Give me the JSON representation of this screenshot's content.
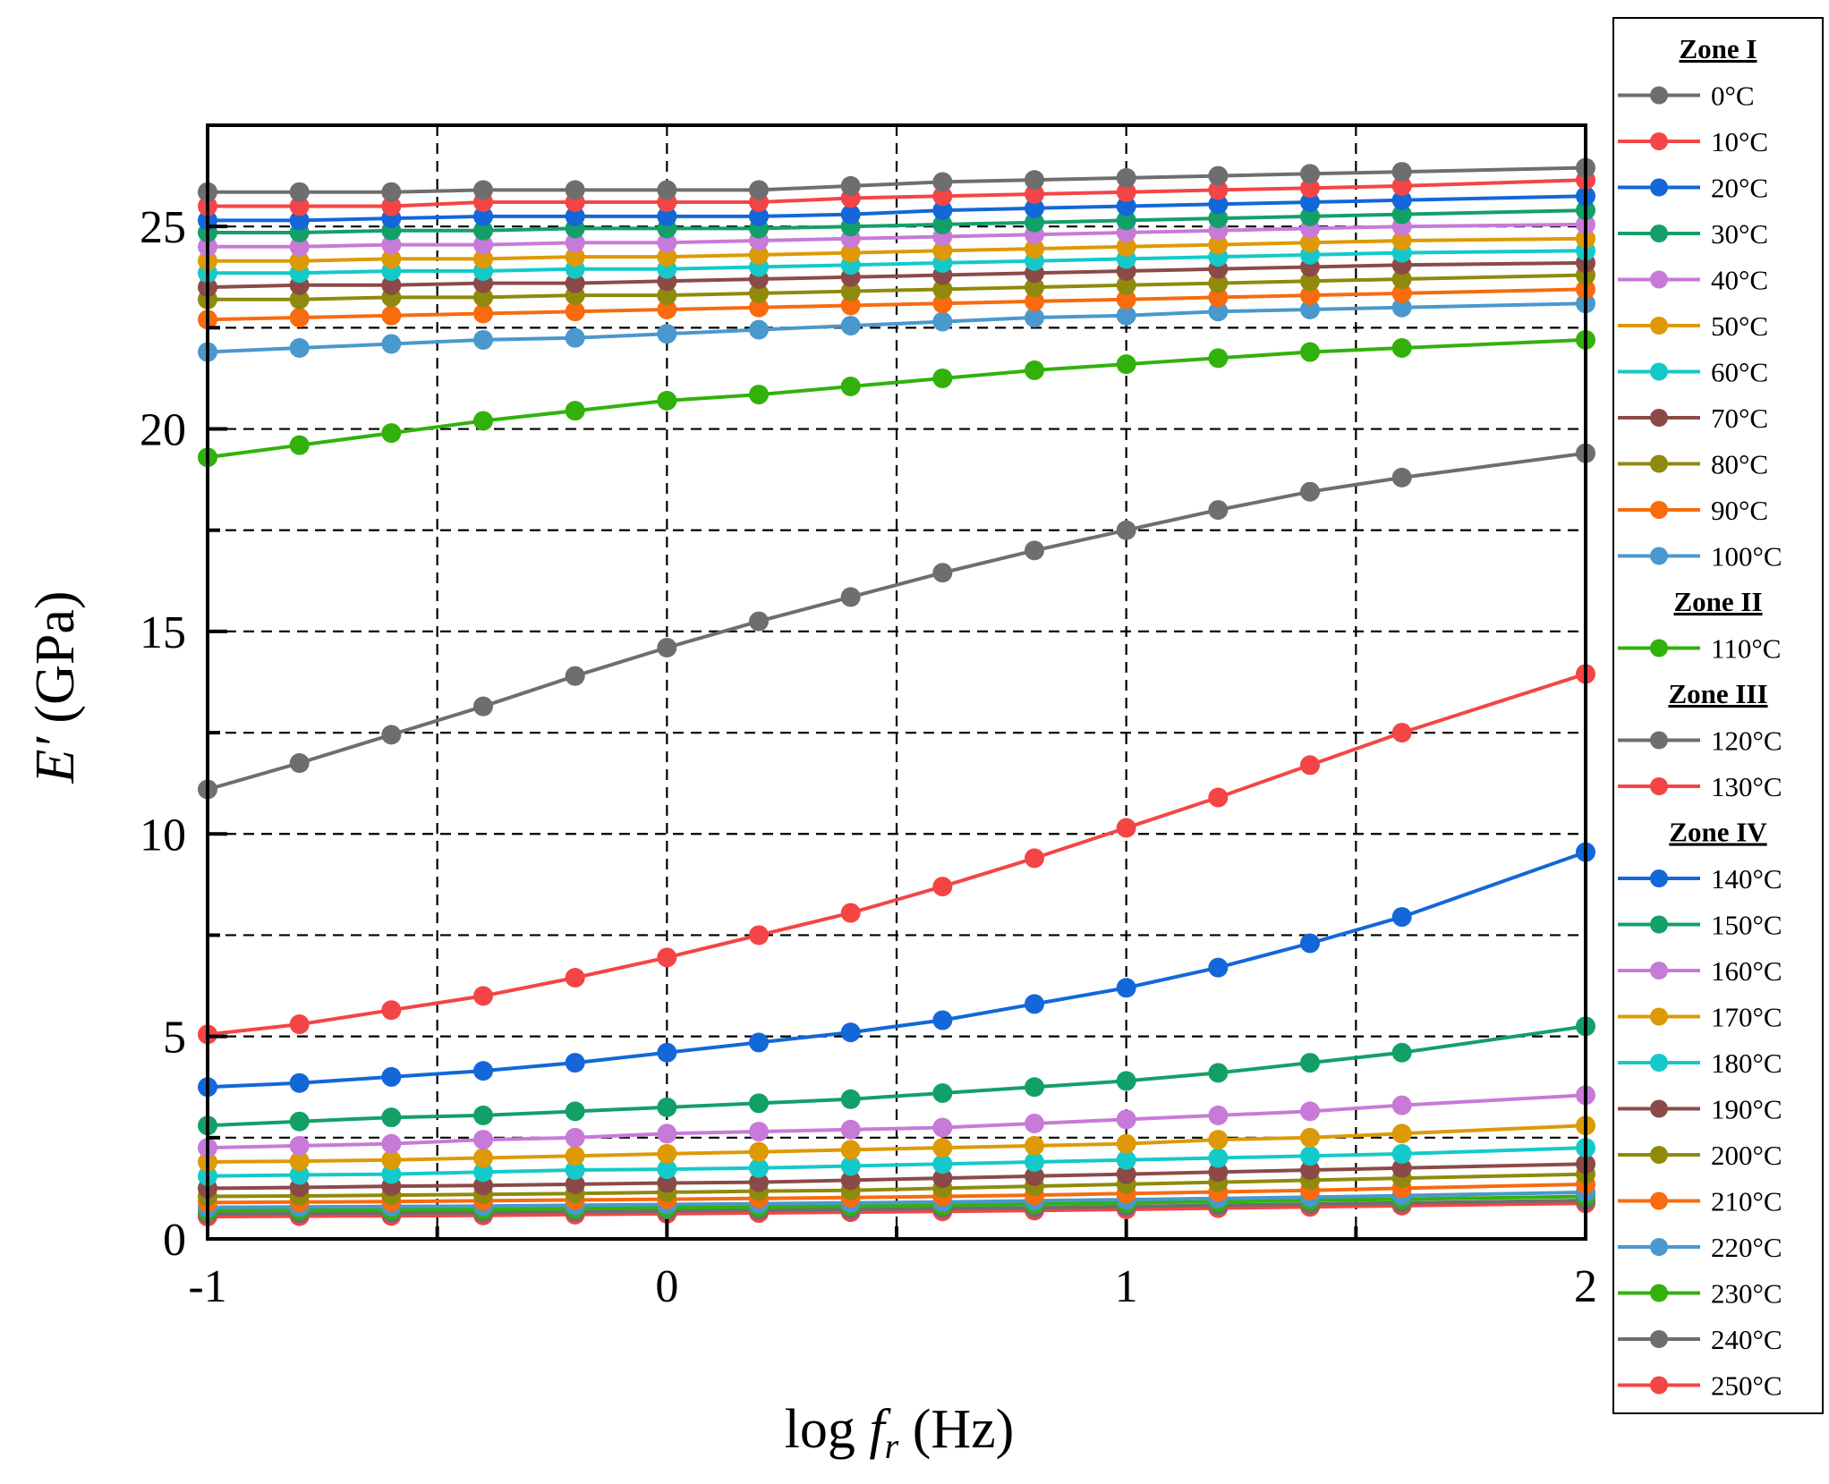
{
  "chart_data": {
    "type": "line",
    "xlabel_prefix": "log ",
    "xlabel_var": "f",
    "xlabel_sub": "r",
    "xlabel_unit": " (Hz)",
    "ylabel_var": "E′",
    "ylabel_unit": " (GPa)",
    "xlim": [
      -1,
      2
    ],
    "ylim": [
      0,
      27.5
    ],
    "xticks": [
      -1,
      0,
      1,
      2
    ],
    "xtick_labels": [
      "-1",
      "0",
      "1",
      "2"
    ],
    "yticks": [
      0,
      5,
      10,
      15,
      20,
      25
    ],
    "ytick_labels": [
      "0",
      "5",
      "10",
      "15",
      "20",
      "25"
    ],
    "grid": "dashed at 0.5 x-steps and 2.5 y-steps",
    "x": [
      -1,
      -0.8,
      -0.6,
      -0.4,
      -0.2,
      0,
      0.2,
      0.4,
      0.6,
      0.8,
      1,
      1.2,
      1.4,
      1.6,
      2
    ],
    "legend": [
      {
        "heading": "Zone I",
        "entries": [
          "0°C",
          "10°C",
          "20°C",
          "30°C",
          "40°C",
          "50°C",
          "60°C",
          "70°C",
          "80°C",
          "90°C",
          "100°C"
        ]
      },
      {
        "heading": "Zone II",
        "entries": [
          "110°C"
        ]
      },
      {
        "heading": "Zone III",
        "entries": [
          "120°C",
          "130°C"
        ]
      },
      {
        "heading": "Zone IV",
        "entries": [
          "140°C",
          "150°C",
          "160°C",
          "170°C",
          "180°C",
          "190°C",
          "200°C",
          "210°C",
          "220°C",
          "230°C",
          "240°C",
          "250°C"
        ]
      }
    ],
    "series": [
      {
        "name": "0°C",
        "color": "#6e6e6e",
        "values": [
          25.85,
          25.85,
          25.85,
          25.9,
          25.9,
          25.9,
          25.9,
          26.0,
          26.1,
          26.15,
          26.2,
          26.25,
          26.3,
          26.35,
          26.45
        ]
      },
      {
        "name": "10°C",
        "color": "#f44546",
        "values": [
          25.5,
          25.5,
          25.5,
          25.6,
          25.6,
          25.6,
          25.6,
          25.7,
          25.75,
          25.8,
          25.85,
          25.9,
          25.95,
          26.0,
          26.15
        ]
      },
      {
        "name": "20°C",
        "color": "#1367d8",
        "values": [
          25.15,
          25.15,
          25.2,
          25.25,
          25.25,
          25.25,
          25.25,
          25.3,
          25.4,
          25.45,
          25.5,
          25.55,
          25.6,
          25.65,
          25.75
        ]
      },
      {
        "name": "30°C",
        "color": "#13a068",
        "values": [
          24.85,
          24.85,
          24.9,
          24.9,
          24.95,
          24.95,
          24.95,
          25.0,
          25.05,
          25.1,
          25.15,
          25.2,
          25.25,
          25.3,
          25.4
        ]
      },
      {
        "name": "40°C",
        "color": "#c77ad8",
        "values": [
          24.5,
          24.5,
          24.55,
          24.55,
          24.6,
          24.6,
          24.65,
          24.7,
          24.75,
          24.8,
          24.85,
          24.9,
          24.95,
          25.0,
          25.05
        ]
      },
      {
        "name": "50°C",
        "color": "#dd9a06",
        "values": [
          24.15,
          24.15,
          24.2,
          24.2,
          24.25,
          24.25,
          24.3,
          24.35,
          24.4,
          24.45,
          24.5,
          24.55,
          24.6,
          24.65,
          24.7
        ]
      },
      {
        "name": "60°C",
        "color": "#14c9c9",
        "values": [
          23.85,
          23.85,
          23.9,
          23.9,
          23.95,
          23.95,
          24.0,
          24.05,
          24.1,
          24.15,
          24.2,
          24.25,
          24.3,
          24.35,
          24.4
        ]
      },
      {
        "name": "70°C",
        "color": "#8b4a48",
        "values": [
          23.5,
          23.55,
          23.55,
          23.6,
          23.6,
          23.65,
          23.7,
          23.75,
          23.8,
          23.85,
          23.9,
          23.95,
          24.0,
          24.05,
          24.1
        ]
      },
      {
        "name": "80°C",
        "color": "#8f8a0b",
        "values": [
          23.2,
          23.2,
          23.25,
          23.25,
          23.3,
          23.3,
          23.35,
          23.4,
          23.45,
          23.5,
          23.55,
          23.6,
          23.65,
          23.7,
          23.8
        ]
      },
      {
        "name": "90°C",
        "color": "#f86b0e",
        "values": [
          22.7,
          22.75,
          22.8,
          22.85,
          22.9,
          22.95,
          23.0,
          23.05,
          23.1,
          23.15,
          23.2,
          23.25,
          23.3,
          23.35,
          23.45
        ]
      },
      {
        "name": "100°C",
        "color": "#4a98cd",
        "values": [
          21.9,
          22.0,
          22.1,
          22.2,
          22.25,
          22.35,
          22.45,
          22.55,
          22.65,
          22.75,
          22.8,
          22.9,
          22.95,
          23.0,
          23.1
        ]
      },
      {
        "name": "110°C",
        "color": "#32b10d",
        "values": [
          19.3,
          19.6,
          19.9,
          20.2,
          20.45,
          20.7,
          20.85,
          21.05,
          21.25,
          21.45,
          21.6,
          21.75,
          21.9,
          22.0,
          22.2
        ]
      },
      {
        "name": "120°C",
        "color": "#6e6e6e",
        "values": [
          11.1,
          11.75,
          12.45,
          13.15,
          13.9,
          14.6,
          15.25,
          15.85,
          16.45,
          17.0,
          17.5,
          18.0,
          18.45,
          18.8,
          19.4
        ]
      },
      {
        "name": "130°C",
        "color": "#f44546",
        "values": [
          5.05,
          5.3,
          5.65,
          6.0,
          6.45,
          6.95,
          7.5,
          8.05,
          8.7,
          9.4,
          10.15,
          10.9,
          11.7,
          12.5,
          13.95
        ]
      },
      {
        "name": "140°C",
        "color": "#1367d8",
        "values": [
          3.75,
          3.85,
          4.0,
          4.15,
          4.35,
          4.6,
          4.85,
          5.1,
          5.4,
          5.8,
          6.2,
          6.7,
          7.3,
          7.95,
          9.55
        ]
      },
      {
        "name": "150°C",
        "color": "#13a068",
        "values": [
          2.8,
          2.9,
          3.0,
          3.05,
          3.15,
          3.25,
          3.35,
          3.45,
          3.6,
          3.75,
          3.9,
          4.1,
          4.35,
          4.6,
          5.25
        ]
      },
      {
        "name": "160°C",
        "color": "#c77ad8",
        "values": [
          2.25,
          2.3,
          2.35,
          2.45,
          2.5,
          2.6,
          2.65,
          2.7,
          2.75,
          2.85,
          2.95,
          3.05,
          3.15,
          3.3,
          3.55
        ]
      },
      {
        "name": "170°C",
        "color": "#dd9a06",
        "values": [
          1.9,
          1.92,
          1.95,
          2.0,
          2.05,
          2.1,
          2.15,
          2.2,
          2.25,
          2.3,
          2.35,
          2.45,
          2.5,
          2.6,
          2.8
        ]
      },
      {
        "name": "180°C",
        "color": "#14c9c9",
        "values": [
          1.55,
          1.58,
          1.6,
          1.65,
          1.7,
          1.72,
          1.75,
          1.8,
          1.85,
          1.9,
          1.95,
          2.0,
          2.05,
          2.1,
          2.25
        ]
      },
      {
        "name": "190°C",
        "color": "#8b4a48",
        "values": [
          1.25,
          1.27,
          1.3,
          1.32,
          1.35,
          1.38,
          1.4,
          1.45,
          1.5,
          1.55,
          1.6,
          1.65,
          1.7,
          1.75,
          1.85
        ]
      },
      {
        "name": "200°C",
        "color": "#8f8a0b",
        "values": [
          1.05,
          1.06,
          1.08,
          1.1,
          1.12,
          1.15,
          1.18,
          1.2,
          1.25,
          1.3,
          1.35,
          1.4,
          1.45,
          1.5,
          1.6
        ]
      },
      {
        "name": "210°C",
        "color": "#f86b0e",
        "values": [
          0.9,
          0.91,
          0.92,
          0.94,
          0.96,
          0.98,
          1.0,
          1.02,
          1.05,
          1.08,
          1.12,
          1.16,
          1.2,
          1.25,
          1.35
        ]
      },
      {
        "name": "220°C",
        "color": "#4a98cd",
        "values": [
          0.78,
          0.79,
          0.8,
          0.81,
          0.83,
          0.85,
          0.87,
          0.89,
          0.91,
          0.94,
          0.97,
          1.0,
          1.03,
          1.07,
          1.15
        ]
      },
      {
        "name": "230°C",
        "color": "#32b10d",
        "values": [
          0.7,
          0.71,
          0.72,
          0.73,
          0.75,
          0.77,
          0.79,
          0.81,
          0.83,
          0.86,
          0.89,
          0.92,
          0.95,
          0.98,
          1.05
        ]
      },
      {
        "name": "240°C",
        "color": "#6e6e6e",
        "values": [
          0.62,
          0.63,
          0.64,
          0.65,
          0.67,
          0.69,
          0.71,
          0.73,
          0.75,
          0.77,
          0.8,
          0.83,
          0.86,
          0.89,
          0.95
        ]
      },
      {
        "name": "250°C",
        "color": "#f44546",
        "values": [
          0.55,
          0.56,
          0.57,
          0.58,
          0.6,
          0.62,
          0.64,
          0.66,
          0.68,
          0.7,
          0.73,
          0.76,
          0.79,
          0.82,
          0.88
        ]
      }
    ]
  }
}
